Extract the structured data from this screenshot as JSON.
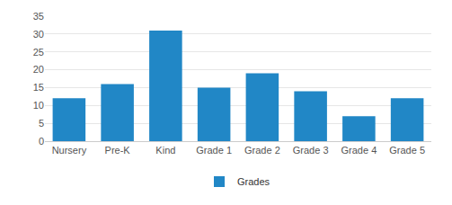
{
  "chart_data": {
    "type": "bar",
    "categories": [
      "Nursery",
      "Pre-K",
      "Kind",
      "Grade 1",
      "Grade 2",
      "Grade 3",
      "Grade 4",
      "Grade 5"
    ],
    "series": [
      {
        "name": "Grades",
        "color": "#2187c6",
        "values": [
          12,
          16,
          31,
          15,
          19,
          14,
          7,
          12
        ]
      }
    ],
    "ylim": [
      0,
      35
    ],
    "yticks": [
      0,
      5,
      10,
      15,
      20,
      25,
      30,
      35
    ],
    "grid": true,
    "legend": "bottom"
  }
}
